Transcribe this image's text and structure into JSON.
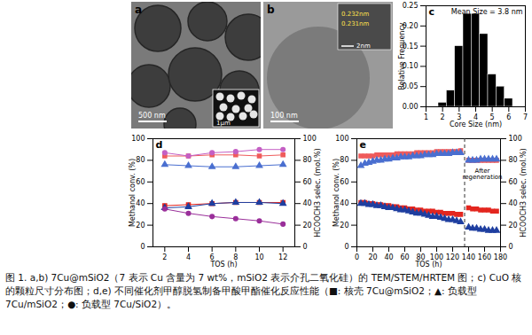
{
  "images": [
    {
      "panel": "a",
      "scale_bar": "500 nm",
      "inset_scale_bar": "1μm"
    },
    {
      "panel": "b",
      "scale_bar": "100 nm",
      "inset_labels": [
        "0.232nm",
        "0.231nm"
      ],
      "inset_scale_bar": "2nm"
    }
  ],
  "chart_data": [
    {
      "panel": "c",
      "type": "histogram",
      "bins": [
        1.75,
        2.25,
        2.75,
        3.25,
        3.75,
        4.25,
        4.75,
        5.25,
        5.75,
        6.25
      ],
      "values": [
        0.01,
        0.04,
        0.15,
        0.23,
        0.23,
        0.18,
        0.08,
        0.05,
        0.02
      ],
      "color": "#000000",
      "annotation": "Mean Size = 3.8 nm",
      "x_label": "Core Size (nm)",
      "y_label": "Relative Frequency",
      "xlim": [
        1,
        7
      ],
      "xticks": [
        1,
        2,
        3,
        4,
        5,
        6,
        7
      ],
      "ylim": [
        0,
        0.25
      ],
      "yticks": [
        {
          "value": 0,
          "label": "0.00"
        },
        {
          "value": 0.05,
          "label": "0.05"
        },
        {
          "value": 0.1,
          "label": "0.10"
        },
        {
          "value": 0.15,
          "label": "0.15"
        },
        {
          "value": 0.2,
          "label": "0.20"
        },
        {
          "value": 0.25,
          "label": "0.25"
        }
      ]
    },
    {
      "panel": "d",
      "type": "line",
      "x": [
        2,
        4,
        6,
        8,
        10,
        12
      ],
      "x_label": "TOS (h)",
      "y_label": "Methanol conv. (%)",
      "y2_label": "HCOOCH3 selec. (mol.%)",
      "xlim": [
        1,
        13
      ],
      "xticks": [
        2,
        4,
        6,
        8,
        10,
        12
      ],
      "ylim": [
        0,
        100
      ],
      "yticks": [
        0,
        20,
        40,
        60,
        80,
        100
      ],
      "y2lim": [
        0,
        100
      ],
      "y2ticks": [
        0,
        20,
        40,
        60,
        80,
        100
      ],
      "series": [
        {
          "color": "#ef5b5b",
          "marker": "square",
          "axis": "y2",
          "values": [
            84,
            84,
            85,
            85,
            84,
            85
          ]
        },
        {
          "color": "#4a6fd0",
          "marker": "triangle",
          "axis": "y2",
          "values": [
            76,
            75,
            74,
            74,
            75,
            76
          ]
        },
        {
          "color": "#c45fc4",
          "marker": "circle",
          "axis": "y2",
          "values": [
            87,
            84,
            87,
            88,
            90,
            90
          ]
        },
        {
          "color": "#e3261f",
          "marker": "square",
          "axis": "y",
          "values": [
            38,
            39,
            40,
            41,
            41,
            41
          ]
        },
        {
          "color": "#1f3fa0",
          "marker": "triangle",
          "axis": "y",
          "values": [
            36,
            37,
            40,
            41,
            41,
            40
          ]
        },
        {
          "color": "#9a2f9a",
          "marker": "circle",
          "axis": "y",
          "values": [
            35,
            31,
            28,
            26,
            24,
            21
          ]
        }
      ]
    },
    {
      "panel": "e",
      "type": "line",
      "x": [
        5,
        10,
        15,
        20,
        25,
        30,
        35,
        40,
        45,
        50,
        55,
        60,
        65,
        70,
        75,
        80,
        85,
        90,
        95,
        100,
        105,
        110,
        115,
        120,
        125,
        130,
        135,
        140,
        145,
        150,
        155,
        160,
        165,
        170,
        175
      ],
      "x_label": "TOS (h)",
      "y_label": "Methanol conv. (%)",
      "y2_label": "HCOOCH3 selec. (mol.%)",
      "xlim": [
        0,
        180
      ],
      "xticks": [
        0,
        20,
        40,
        60,
        80,
        100,
        120,
        140,
        160,
        180
      ],
      "ylim": [
        0,
        100
      ],
      "yticks": [
        0,
        20,
        40,
        60,
        80,
        100
      ],
      "y2lim": [
        0,
        100
      ],
      "y2ticks": [
        0,
        20,
        40,
        60,
        80,
        100
      ],
      "regeneration_x": 135,
      "annotation": "After regeneration",
      "series": [
        {
          "color": "#ef5b5b",
          "marker": "square",
          "axis": "y2",
          "values": [
            84,
            84,
            84,
            84,
            85,
            85,
            85,
            85,
            85,
            86,
            86,
            86,
            86,
            86,
            87,
            87,
            87,
            87,
            87,
            88,
            88,
            88,
            88,
            88,
            88,
            89,
            null,
            80,
            80,
            80,
            80,
            80,
            80,
            80,
            80
          ]
        },
        {
          "color": "#4a6fd0",
          "marker": "triangle",
          "axis": "y2",
          "values": [
            75,
            77,
            78,
            79,
            80,
            80,
            81,
            81,
            82,
            82,
            83,
            83,
            83,
            84,
            84,
            84,
            85,
            85,
            85,
            86,
            86,
            86,
            86,
            87,
            87,
            87,
            null,
            80,
            80,
            80,
            81,
            81,
            81,
            81,
            81
          ]
        },
        {
          "color": "#e3261f",
          "marker": "square",
          "axis": "y",
          "values": [
            41,
            41,
            40,
            40,
            39,
            39,
            38,
            38,
            37,
            37,
            36,
            36,
            35,
            35,
            34,
            34,
            33,
            33,
            33,
            32,
            32,
            31,
            31,
            31,
            30,
            30,
            null,
            36,
            35,
            35,
            34,
            34,
            34,
            33,
            33
          ]
        },
        {
          "color": "#1f3fa0",
          "marker": "triangle",
          "axis": "y",
          "values": [
            40,
            40,
            39,
            39,
            38,
            38,
            37,
            36,
            36,
            35,
            34,
            34,
            33,
            32,
            31,
            31,
            30,
            29,
            28,
            28,
            27,
            26,
            25,
            25,
            24,
            23,
            null,
            18,
            17,
            17,
            16,
            16,
            15,
            15,
            15
          ]
        }
      ]
    }
  ],
  "caption": "图 1. a,b) 7Cu@mSiO2（7 表示 Cu 含量为 7 wt%，mSiO2 表示介孔二氧化硅）的 TEM/STEM/HRTEM 图；c) CuO 核的颗粒尺寸分布图；d,e) 不同催化剂甲醇脱氢制备甲酸甲酯催化反应性能（■: 核壳 7Cu@mSiO2；▲: 负载型 7Cu/mSiO2；●: 负载型 7Cu/SiO2）。"
}
